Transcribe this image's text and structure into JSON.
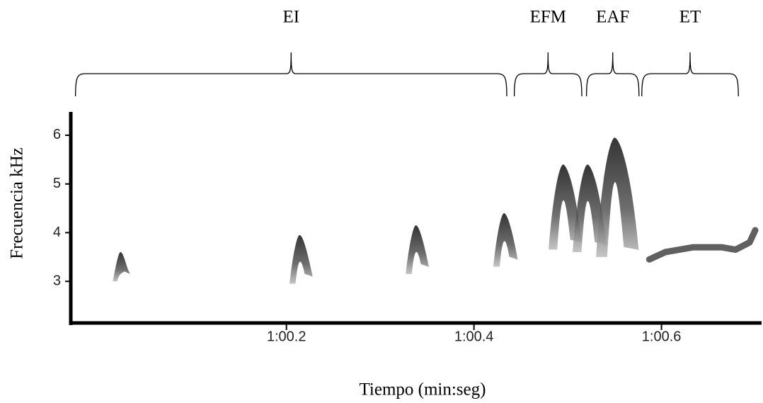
{
  "chart_data": {
    "type": "spectrogram",
    "xlabel": "Tiempo (min:seg)",
    "ylabel": "Frecuencia kHz",
    "xlim": [
      59.97,
      60.706
    ],
    "ylim": [
      2.16,
      6.45
    ],
    "xticks": [
      {
        "value": 60.2,
        "label": "1:00.2"
      },
      {
        "value": 60.4,
        "label": "1:00.4"
      },
      {
        "value": 60.6,
        "label": "1:00.6"
      }
    ],
    "yticks": [
      3,
      4,
      5,
      6
    ],
    "segments": [
      {
        "label": "EI",
        "start": 59.975,
        "end": 60.435
      },
      {
        "label": "EFM",
        "start": 60.443,
        "end": 60.515
      },
      {
        "label": "EAF",
        "start": 60.52,
        "end": 60.576
      },
      {
        "label": "ET",
        "start": 60.579,
        "end": 60.682
      }
    ],
    "syllables": [
      {
        "x": 60.023,
        "high": 3.6,
        "low": 3.0
      },
      {
        "x": 60.214,
        "high": 3.95,
        "low": 2.95
      },
      {
        "x": 60.338,
        "high": 4.15,
        "low": 3.15
      },
      {
        "x": 60.432,
        "high": 4.4,
        "low": 3.3
      },
      {
        "x": 60.495,
        "high": 5.4,
        "low": 3.65
      },
      {
        "x": 60.521,
        "high": 5.4,
        "low": 3.6
      },
      {
        "x": 60.55,
        "high": 5.95,
        "low": 3.5
      }
    ],
    "trill": {
      "x": [
        60.587,
        60.604,
        60.634,
        60.664,
        60.679,
        60.694,
        60.7
      ],
      "y": [
        3.45,
        3.6,
        3.7,
        3.7,
        3.65,
        3.8,
        4.05
      ]
    }
  }
}
